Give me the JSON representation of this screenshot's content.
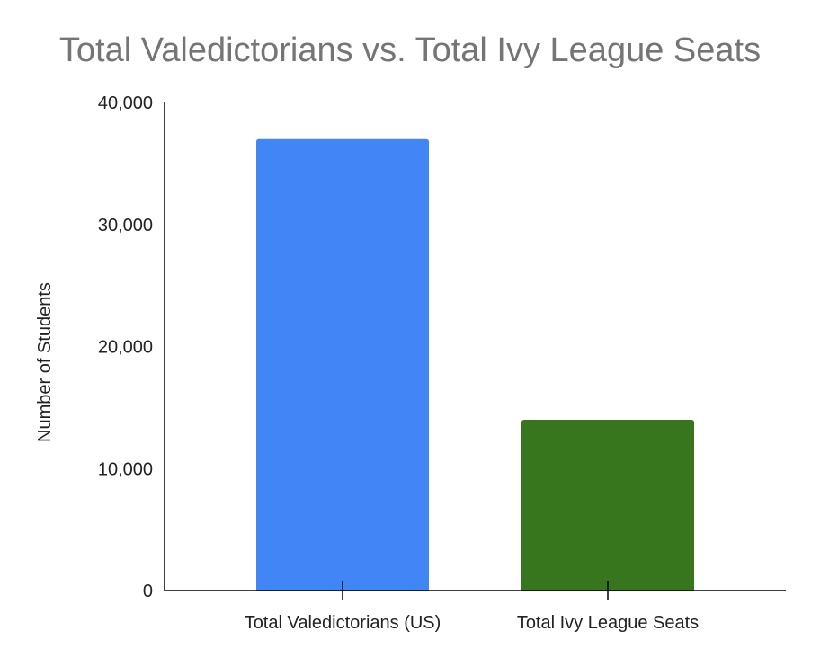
{
  "chart_data": {
    "type": "bar",
    "title": "Total Valedictorians vs. Total Ivy League Seats",
    "xlabel": "",
    "ylabel": "Number of Students",
    "categories": [
      "Total Valedictorians (US)",
      "Total Ivy League Seats"
    ],
    "values": [
      37000,
      14000
    ],
    "colors": [
      "#4285f4",
      "#38761d"
    ],
    "ylim": [
      0,
      40000
    ],
    "yticks": [
      0,
      10000,
      20000,
      30000,
      40000
    ],
    "ytick_labels": [
      "0",
      "10,000",
      "20,000",
      "30,000",
      "40,000"
    ],
    "grid": false,
    "legend": "none"
  }
}
